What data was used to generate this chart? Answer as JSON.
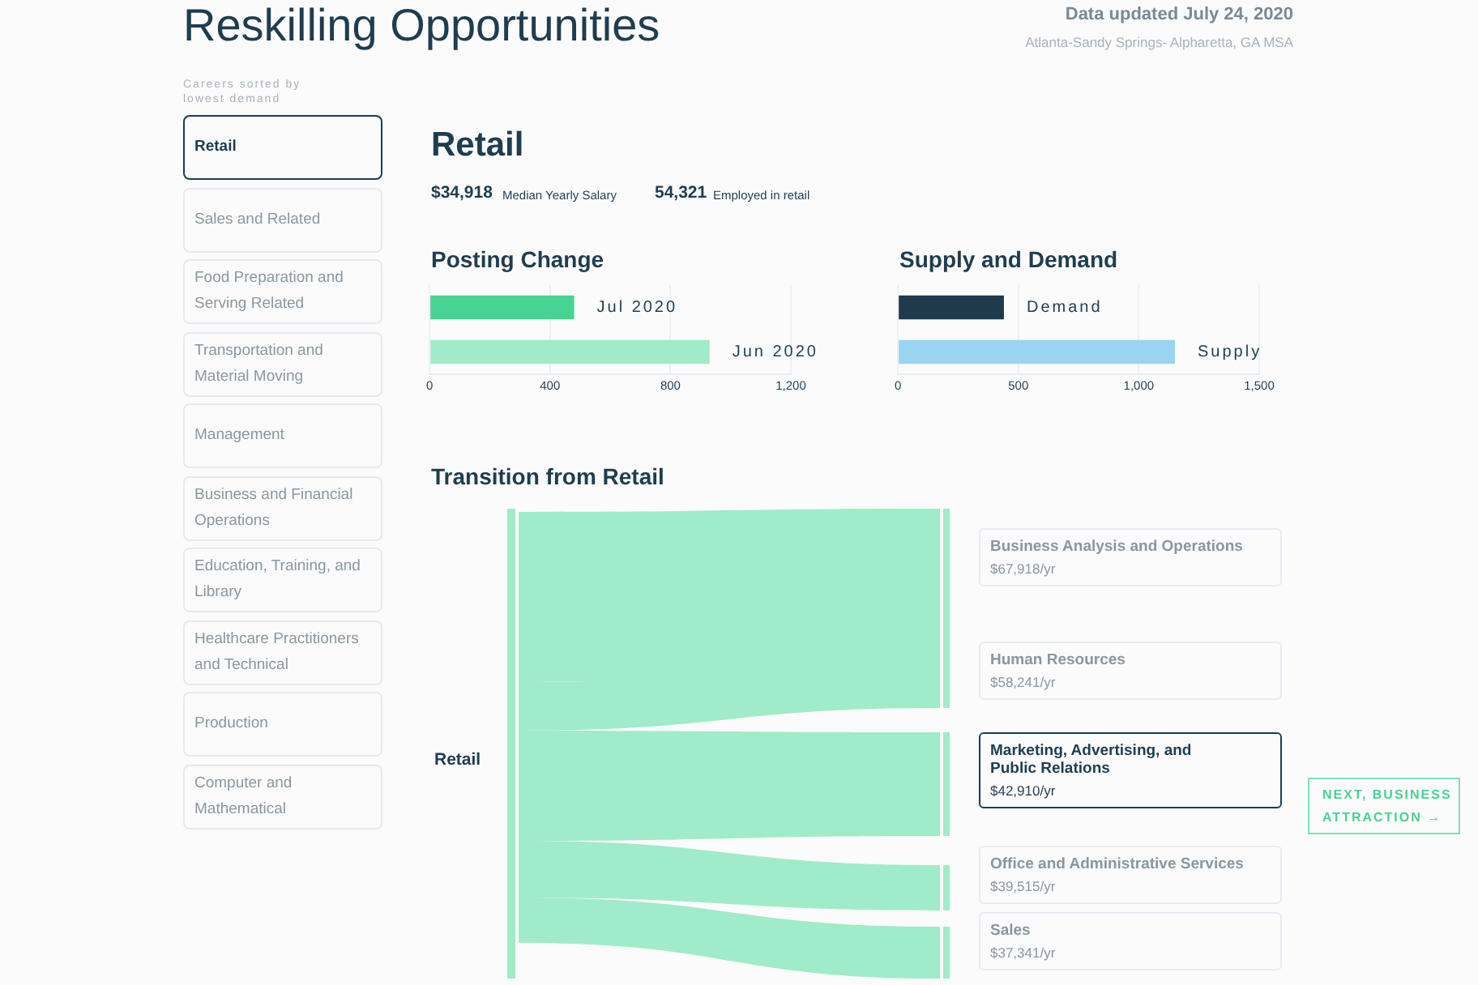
{
  "chart_data": [
    {
      "type": "other",
      "title": "Reskilling Opportunities",
      "annotations": [
        "Data updated July 24, 2020",
        "Atlanta-Sandy Springs- Alpharetta, GA MSA"
      ]
    },
    {
      "type": "other",
      "title": "Careers sorted by lowest demand",
      "categories": [
        "Retail",
        "Sales and Related",
        "Food Preparation and Serving Related",
        "Transportation and Material Moving",
        "Management",
        "Business and Financial Operations",
        "Education, Training, and Library",
        "Healthcare Practitioners and Technical",
        "Production",
        "Computer and Mathematical"
      ]
    },
    {
      "type": "other",
      "title": "Retail",
      "annotations": [
        "$34,918",
        "Median Yearly Salary",
        "54,321",
        "Employed in retail"
      ]
    },
    {
      "type": "bar",
      "orientation": "horizontal",
      "title": "Posting Change",
      "categories": [
        "Jul 2020",
        "Jun 2020"
      ],
      "values": [
        480,
        930
      ],
      "colors": [
        "#45d492",
        "#a0ebc9"
      ],
      "xlim": [
        0,
        1200
      ],
      "xticks": [
        0,
        400,
        800,
        {
          "value": 1200,
          "label": "1,200"
        }
      ],
      "grid": "x",
      "tick_labels": "x"
    },
    {
      "type": "bar",
      "orientation": "horizontal",
      "title": "Supply and Demand",
      "categories": [
        "Demand",
        "Supply"
      ],
      "values": [
        440,
        1150
      ],
      "colors": [
        "#1e3a4c",
        "#99d5f0"
      ],
      "xlim": [
        0,
        1500
      ],
      "xticks": [
        0,
        500,
        {
          "value": 1000,
          "label": "1,000"
        },
        {
          "value": 1500,
          "label": "1,500"
        }
      ],
      "grid": "x",
      "tick_labels": "x"
    },
    {
      "type": "other",
      "title": "Transition from Retail",
      "categories": [
        "Business Analysis and Operations",
        "Human Resources",
        "Marketing, Advertising, and Public Relations",
        "Office and Administrative Services",
        "Sales"
      ],
      "annotations": [
        "Retail",
        "$67,918/yr",
        "$58,241/yr",
        "$42,910/yr",
        "$39,515/yr",
        "$37,341/yr",
        "NEXT, BUSINESS ATTRACTION →"
      ]
    }
  ]
}
